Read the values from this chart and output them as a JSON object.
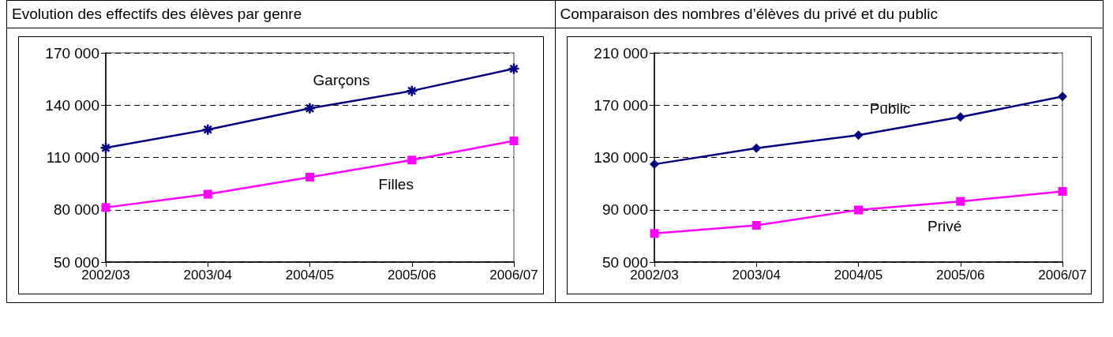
{
  "chart_data": [
    {
      "type": "line",
      "title": "Evolution des effectifs des élèves par genre",
      "categories": [
        "2002/03",
        "2003/04",
        "2004/05",
        "2005/06",
        "2006/07"
      ],
      "series": [
        {
          "name": "Garçons",
          "color": "#000080",
          "marker": "cross",
          "values": [
            115500,
            126000,
            138200,
            148200,
            160900
          ]
        },
        {
          "name": "Filles",
          "color": "#ff00ff",
          "marker": "square",
          "values": [
            81300,
            88900,
            98700,
            108500,
            119500
          ]
        }
      ],
      "ylim": [
        50000,
        170000
      ],
      "yticks": [
        {
          "value": 50000,
          "label": "50 000"
        },
        {
          "value": 80000,
          "label": "80 000"
        },
        {
          "value": 110000,
          "label": "110 000"
        },
        {
          "value": 140000,
          "label": "140 000"
        },
        {
          "value": 170000,
          "label": "170 000"
        }
      ],
      "grid": "y",
      "legend": false
    },
    {
      "type": "line",
      "title": "Comparaison des nombres d’élèves du privé et du public",
      "categories": [
        "2002/03",
        "2003/04",
        "2004/05",
        "2005/06",
        "2006/07"
      ],
      "series": [
        {
          "name": "Public",
          "color": "#000080",
          "marker": "diamond",
          "values": [
            124800,
            137100,
            147100,
            160900,
            176700
          ]
        },
        {
          "name": "Privé",
          "color": "#ff00ff",
          "marker": "square",
          "values": [
            71900,
            78100,
            89800,
            96400,
            104000
          ]
        }
      ],
      "ylim": [
        50000,
        210000
      ],
      "yticks": [
        {
          "value": 50000,
          "label": "50 000"
        },
        {
          "value": 90000,
          "label": "90 000"
        },
        {
          "value": 130000,
          "label": "130 000"
        },
        {
          "value": 170000,
          "label": "170 000"
        },
        {
          "value": 210000,
          "label": "210 000"
        }
      ],
      "grid": "y",
      "legend": false
    }
  ]
}
